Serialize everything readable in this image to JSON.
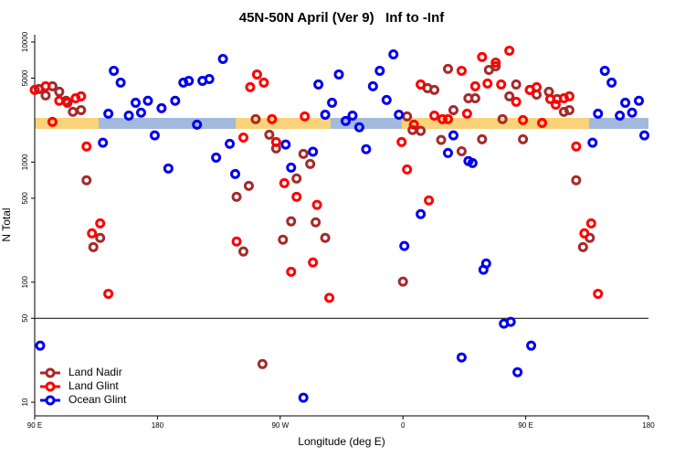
{
  "chart_data": {
    "type": "scatter",
    "title": "45N-50N April (Ver 9)   Inf to -Inf",
    "xlabel": "Longitude (deg E)",
    "ylabel": "N Total",
    "log_y": true,
    "xlim": [
      90,
      540
    ],
    "xticks": [
      {
        "value": 90,
        "label": "90 E"
      },
      180,
      {
        "value": 270,
        "label": "90 W"
      },
      {
        "value": 360,
        "label": "0"
      },
      {
        "value": 450,
        "label": "90 E"
      },
      {
        "value": 540,
        "label": "180"
      }
    ],
    "ylim": [
      7.7,
      11500
    ],
    "yticks": [
      10,
      50,
      100,
      500,
      1000,
      5000,
      10000
    ],
    "hline": 50,
    "legend": "bottom-left",
    "series": [
      {
        "name": "Land Nadir",
        "color": "#a52a2a",
        "x": [
          93,
          98,
          103,
          108,
          118,
          124,
          128,
          133,
          138,
          113,
          238,
          243,
          247,
          252,
          257,
          262,
          267,
          272,
          278,
          282,
          287,
          292,
          296,
          303,
          360,
          363,
          367,
          373,
          378,
          383,
          388,
          393,
          397,
          403,
          408,
          413,
          418,
          423,
          428,
          433,
          438,
          443,
          448,
          453,
          458,
          467,
          473,
          478,
          482,
          487,
          492,
          497
        ],
        "values": [
          4060,
          3590,
          4280,
          3850,
          2620,
          2710,
          705,
          196,
          234,
          3240,
          514,
          180,
          634,
          2280,
          20.8,
          1690,
          1300,
          226,
          321,
          730,
          1170,
          966,
          315,
          234,
          101,
          2400,
          1850,
          1820,
          4130,
          3990,
          1530,
          5970,
          2710,
          1230,
          3400,
          3400,
          1550,
          5860,
          6280,
          2280,
          3530,
          4430,
          1550,
          3990,
          3650,
          3850,
          3350,
          2620,
          2710,
          705,
          196,
          234
        ]
      },
      {
        "name": "Land Glint",
        "color": "#ff0000",
        "x": [
          90,
          98,
          103,
          108,
          114,
          120,
          124,
          128,
          132,
          138,
          144,
          238,
          243,
          248,
          253,
          258,
          264,
          267,
          273,
          278,
          282,
          288,
          294,
          297,
          306,
          359,
          363,
          368,
          373,
          379,
          383,
          389,
          393,
          403,
          407,
          413,
          418,
          422,
          428,
          432,
          438,
          443,
          448,
          453,
          458,
          462,
          468,
          472,
          478,
          482,
          487,
          493,
          498,
          503
        ],
        "values": [
          3990,
          4280,
          2160,
          3240,
          3120,
          3400,
          3530,
          1350,
          255,
          309,
          80,
          218,
          1600,
          4210,
          5370,
          4590,
          2280,
          1470,
          668,
          122,
          514,
          2400,
          146,
          440,
          74,
          1470,
          868,
          2050,
          4430,
          480,
          2440,
          2280,
          2280,
          5760,
          2530,
          4280,
          7500,
          4510,
          6740,
          4430,
          8470,
          3180,
          2240,
          3990,
          4210,
          2120,
          3350,
          3010,
          3400,
          3530,
          1350,
          255,
          309,
          80
        ]
      },
      {
        "name": "Ocean Glint",
        "color": "#0000ee",
        "x": [
          94,
          140,
          144,
          148,
          153,
          159,
          164,
          168,
          173,
          178,
          183,
          188,
          193,
          199,
          203,
          209,
          213,
          218,
          223,
          228,
          233,
          237,
          274,
          278,
          287,
          294,
          298,
          303,
          308,
          313,
          318,
          323,
          328,
          333,
          338,
          343,
          348,
          353,
          357,
          361,
          373,
          393,
          397,
          403,
          408,
          411,
          419,
          421,
          434,
          439,
          444,
          454,
          499,
          503,
          508,
          513,
          519,
          523,
          528,
          533,
          537
        ],
        "values": [
          29.6,
          1450,
          2530,
          5760,
          4590,
          2440,
          3120,
          2580,
          3240,
          1670,
          2810,
          885,
          3240,
          4590,
          4750,
          2050,
          4750,
          4920,
          1090,
          7230,
          1420,
          796,
          1400,
          900,
          10.9,
          1220,
          4430,
          2480,
          3120,
          5370,
          2200,
          2440,
          1950,
          1280,
          4280,
          5760,
          3290,
          7890,
          2480,
          200,
          369,
          1190,
          1670,
          23.6,
          1020,
          982,
          127,
          143,
          45.1,
          46.7,
          17.8,
          29.6,
          1450,
          2530,
          5760,
          4590,
          2440,
          3120,
          2580,
          3240,
          1670
        ]
      }
    ]
  }
}
